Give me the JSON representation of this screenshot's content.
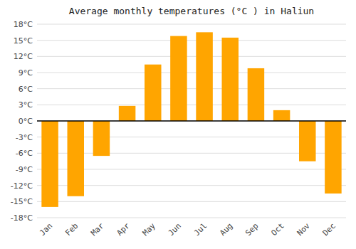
{
  "chart_data": {
    "type": "bar",
    "title": "Average monthly temperatures (°C ) in Haliun",
    "categories": [
      "Jan",
      "Feb",
      "Mar",
      "Apr",
      "May",
      "Jun",
      "Jul",
      "Aug",
      "Sep",
      "Oct",
      "Nov",
      "Dec"
    ],
    "values": [
      -16,
      -14,
      -6.5,
      2.8,
      10.5,
      15.8,
      16.5,
      15.5,
      9.8,
      2.0,
      -7.5,
      -13.5
    ],
    "color": "#FFA500",
    "ylim": [
      -18,
      18
    ],
    "yticks": [
      {
        "value": -18,
        "label": "-18°C"
      },
      {
        "value": -15,
        "label": "-15°C"
      },
      {
        "value": -12,
        "label": "-12°C"
      },
      {
        "value": -9,
        "label": "-9°C"
      },
      {
        "value": -6,
        "label": "-6°C"
      },
      {
        "value": -3,
        "label": "-3°C"
      },
      {
        "value": 0,
        "label": "0°C"
      },
      {
        "value": 3,
        "label": "3°C"
      },
      {
        "value": 6,
        "label": "6°C"
      },
      {
        "value": 9,
        "label": "9°C"
      },
      {
        "value": 12,
        "label": "12°C"
      },
      {
        "value": 15,
        "label": "15°C"
      },
      {
        "value": 18,
        "label": "18°C"
      }
    ],
    "grid": true
  }
}
